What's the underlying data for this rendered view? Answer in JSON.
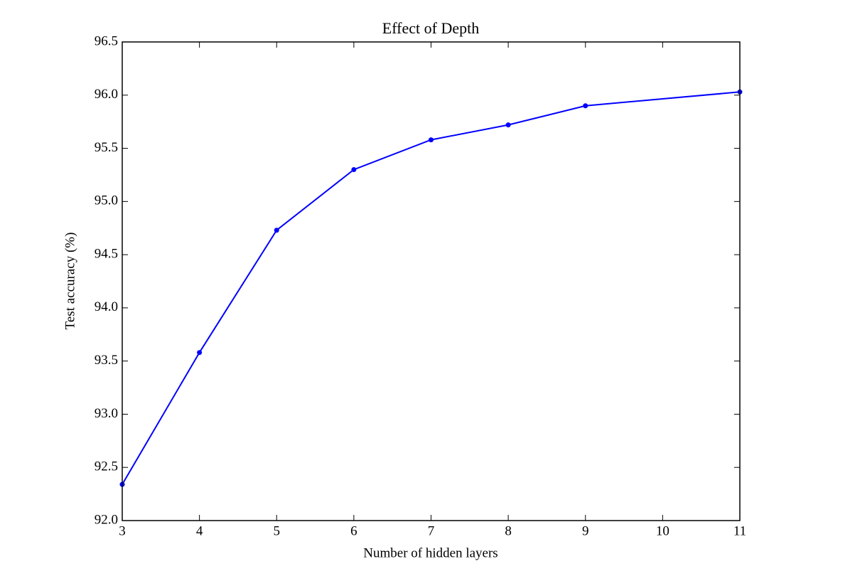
{
  "chart_data": {
    "type": "line",
    "title": "Effect of Depth",
    "x_label": "Number of hidden layers",
    "y_label": "Test accuracy (%)",
    "x": [
      3,
      4,
      5,
      6,
      7,
      8,
      9,
      11
    ],
    "values": [
      92.34,
      93.58,
      94.73,
      95.3,
      95.58,
      95.72,
      95.9,
      96.03
    ],
    "color": "#0000ff",
    "xlim": [
      3,
      11
    ],
    "xticks": [
      3,
      4,
      5,
      6,
      7,
      8,
      9,
      10,
      11
    ],
    "ylim": [
      92,
      96.5
    ],
    "yticks": [
      {
        "value": 92,
        "label": "92.0"
      },
      92.5,
      {
        "value": 93,
        "label": "93.0"
      },
      93.5,
      {
        "value": 94,
        "label": "94.0"
      },
      94.5,
      {
        "value": 95,
        "label": "95.0"
      },
      95.5,
      {
        "value": 96,
        "label": "96.0"
      },
      96.5
    ],
    "grid": false
  }
}
